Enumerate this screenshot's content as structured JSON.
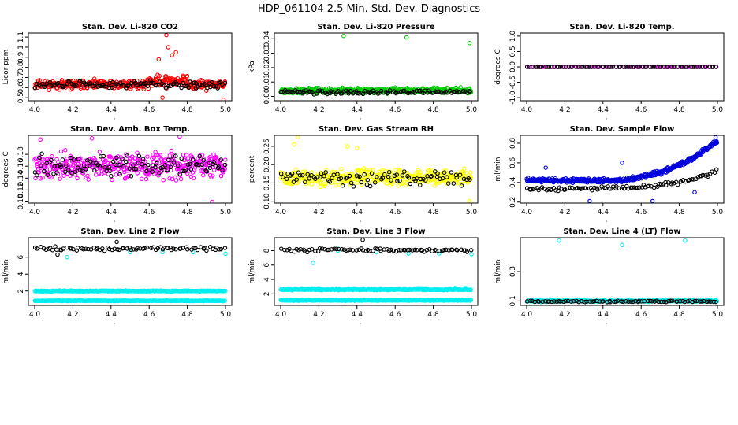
{
  "figure_title": "HDP_061104  2.5 Min. Std. Dev. Diagnostics",
  "chart_data": [
    {
      "type": "scatter",
      "title": "Stan. Dev. Li-820 CO2",
      "ylabel": "Licor ppm",
      "xlabel": "",
      "xlim": [
        4.0,
        5.0
      ],
      "ylim": [
        0.47,
        1.14
      ],
      "xticks": [
        4.0,
        4.2,
        4.4,
        4.6,
        4.8,
        5.0
      ],
      "xtick_labels": [
        "4.0",
        "4.2",
        "4.4",
        "4.6",
        "4.8",
        "5.0"
      ],
      "yticks": [
        0.5,
        0.6,
        0.7,
        0.8,
        0.9,
        1.0,
        1.1
      ],
      "ytick_labels": [
        "0.5",
        "0.6",
        "0.7",
        "0.8",
        "0.9",
        "1",
        "1.1"
      ],
      "series": [
        {
          "name": "dense",
          "color": "#ff0000",
          "gen": {
            "kind": "noise",
            "n": 400,
            "base": 0.63,
            "amp": 0.06,
            "seed": 11,
            "ramp": {
              "from": 4.6,
              "to": 4.8,
              "add": 0.08
            }
          },
          "extra": [
            [
              4.69,
              1.12
            ],
            [
              4.7,
              1.0
            ],
            [
              4.72,
              0.92
            ],
            [
              4.65,
              0.88
            ],
            [
              4.74,
              0.95
            ],
            [
              4.67,
              0.5
            ],
            [
              4.99,
              0.48
            ],
            [
              4.9,
              0.57
            ]
          ]
        },
        {
          "name": "sparse",
          "color": "#000000",
          "gen": {
            "kind": "noise",
            "n": 110,
            "base": 0.63,
            "amp": 0.05,
            "seed": 12
          }
        }
      ]
    },
    {
      "type": "scatter",
      "title": "Stan. Dev. Li-820 Pressure",
      "ylabel": "kPa",
      "xlabel": "",
      "xlim": [
        4.0,
        5.0
      ],
      "ylim": [
        -0.003,
        0.044
      ],
      "xticks": [
        4.0,
        4.2,
        4.4,
        4.6,
        4.8,
        5.0
      ],
      "xtick_labels": [
        "4.0",
        "4.2",
        "4.4",
        "4.6",
        "4.8",
        "5.0"
      ],
      "yticks": [
        0.0,
        0.01,
        0.02,
        0.03,
        0.04
      ],
      "ytick_labels": [
        "0.00",
        "0.01",
        "0.02",
        "0.03",
        "0.04"
      ],
      "series": [
        {
          "name": "dense",
          "color": "#00cc00",
          "gen": {
            "kind": "noise",
            "n": 450,
            "base": 0.004,
            "amp": 0.0025,
            "seed": 21
          },
          "extra": [
            [
              4.33,
              0.042
            ],
            [
              4.66,
              0.041
            ],
            [
              4.99,
              0.037
            ]
          ]
        },
        {
          "name": "sparse",
          "color": "#000000",
          "gen": {
            "kind": "noise",
            "n": 110,
            "base": 0.003,
            "amp": 0.002,
            "seed": 22
          }
        }
      ]
    },
    {
      "type": "scatter",
      "title": "Stan. Dev. Li-820 Temp.",
      "ylabel": "degrees C",
      "xlabel": "",
      "xlim": [
        4.0,
        5.0
      ],
      "ylim": [
        -1.1,
        1.1
      ],
      "xticks": [
        4.0,
        4.2,
        4.4,
        4.6,
        4.8,
        5.0
      ],
      "xtick_labels": [
        "4.0",
        "4.2",
        "4.4",
        "4.6",
        "4.8",
        "5.0"
      ],
      "yticks": [
        -1.0,
        -0.5,
        0.0,
        0.5,
        1.0
      ],
      "ytick_labels": [
        "-1.0",
        "-0.5",
        "0.0",
        "0.5",
        "1.0"
      ],
      "series": [
        {
          "name": "dense",
          "color": "#ff00ff",
          "gen": {
            "kind": "flat",
            "n": 80,
            "base": 0.0,
            "seed": 31
          }
        },
        {
          "name": "sparse",
          "color": "#000000",
          "gen": {
            "kind": "flat",
            "n": 80,
            "base": 0.0,
            "seed": 32
          }
        }
      ]
    },
    {
      "type": "scatter",
      "title": "Stan. Dev. Amb. Box Temp.",
      "ylabel": "degrees C",
      "xlabel": "",
      "xlim": [
        4.0,
        5.0
      ],
      "ylim": [
        0.098,
        0.212
      ],
      "xticks": [
        4.0,
        4.2,
        4.4,
        4.6,
        4.8,
        5.0
      ],
      "xtick_labels": [
        "4.0",
        "4.2",
        "4.4",
        "4.6",
        "4.8",
        "5.0"
      ],
      "yticks": [
        0.1,
        0.12,
        0.14,
        0.16,
        0.18
      ],
      "ytick_labels": [
        "0.10",
        "0.12",
        "0.14",
        "0.16",
        "0.18"
      ],
      "series": [
        {
          "name": "dense",
          "color": "#ff00ff",
          "gen": {
            "kind": "noise",
            "n": 400,
            "base": 0.16,
            "amp": 0.03,
            "seed": 41
          },
          "extra": [
            [
              4.03,
              0.205
            ],
            [
              4.76,
              0.21
            ],
            [
              4.93,
              0.1
            ],
            [
              4.3,
              0.207
            ]
          ]
        },
        {
          "name": "sparse",
          "color": "#000000",
          "gen": {
            "kind": "noise",
            "n": 110,
            "base": 0.16,
            "amp": 0.025,
            "seed": 42
          }
        }
      ]
    },
    {
      "type": "scatter",
      "title": "Stan. Dev. Gas Stream RH",
      "ylabel": "percent",
      "xlabel": "",
      "xlim": [
        4.0,
        5.0
      ],
      "ylim": [
        0.095,
        0.28
      ],
      "xticks": [
        4.0,
        4.2,
        4.4,
        4.6,
        4.8,
        5.0
      ],
      "xtick_labels": [
        "4.0",
        "4.2",
        "4.4",
        "4.6",
        "4.8",
        "5.0"
      ],
      "yticks": [
        0.1,
        0.15,
        0.2,
        0.25
      ],
      "ytick_labels": [
        "0.10",
        "0.15",
        "0.20",
        "0.25"
      ],
      "series": [
        {
          "name": "dense",
          "color": "#ffff00",
          "gen": {
            "kind": "noise",
            "n": 400,
            "base": 0.165,
            "amp": 0.03,
            "seed": 51
          },
          "extra": [
            [
              4.09,
              0.275
            ],
            [
              4.07,
              0.255
            ],
            [
              4.35,
              0.25
            ],
            [
              4.4,
              0.245
            ],
            [
              4.99,
              0.1
            ]
          ]
        },
        {
          "name": "sparse",
          "color": "#000000",
          "gen": {
            "kind": "noise",
            "n": 90,
            "base": 0.165,
            "amp": 0.03,
            "seed": 52
          }
        }
      ]
    },
    {
      "type": "scatter",
      "title": "Stan. Dev. Sample Flow",
      "ylabel": "ml/min",
      "xlabel": "",
      "xlim": [
        4.0,
        5.0
      ],
      "ylim": [
        0.19,
        0.88
      ],
      "xticks": [
        4.0,
        4.2,
        4.4,
        4.6,
        4.8,
        5.0
      ],
      "xtick_labels": [
        "4.0",
        "4.2",
        "4.4",
        "4.6",
        "4.8",
        "5.0"
      ],
      "yticks": [
        0.2,
        0.4,
        0.6,
        0.8
      ],
      "ytick_labels": [
        "0.2",
        "0.4",
        "0.6",
        "0.8"
      ],
      "series": [
        {
          "name": "dense",
          "color": "#0000dd",
          "gen": {
            "kind": "trend",
            "n": 420,
            "seed": 61,
            "pts": [
              [
                4.0,
                0.42
              ],
              [
                4.5,
                0.42
              ],
              [
                4.7,
                0.5
              ],
              [
                4.85,
                0.62
              ],
              [
                5.0,
                0.82
              ]
            ],
            "amp": 0.03
          },
          "extra": [
            [
              4.33,
              0.21
            ],
            [
              4.5,
              0.6
            ],
            [
              4.66,
              0.21
            ],
            [
              4.1,
              0.55
            ],
            [
              4.88,
              0.3
            ],
            [
              4.99,
              0.86
            ]
          ]
        },
        {
          "name": "sparse",
          "color": "#000000",
          "gen": {
            "kind": "trend",
            "n": 100,
            "seed": 62,
            "pts": [
              [
                4.0,
                0.33
              ],
              [
                4.6,
                0.35
              ],
              [
                4.85,
                0.42
              ],
              [
                5.0,
                0.52
              ]
            ],
            "amp": 0.03
          }
        }
      ]
    },
    {
      "type": "scatter",
      "title": "Stan. Dev. Line 2 Flow",
      "ylabel": "ml/min",
      "xlabel": "",
      "xlim": [
        4.0,
        5.0
      ],
      "ylim": [
        0.3,
        8.3
      ],
      "xticks": [
        4.0,
        4.2,
        4.4,
        4.6,
        4.8,
        5.0
      ],
      "xtick_labels": [
        "4.0",
        "4.2",
        "4.4",
        "4.6",
        "4.8",
        "5.0"
      ],
      "yticks": [
        2,
        4,
        6
      ],
      "ytick_labels": [
        "2",
        "4",
        "6"
      ],
      "series": [
        {
          "name": "band-high",
          "color": "#00eeee",
          "gen": {
            "kind": "flat",
            "n": 260,
            "base": 2.0,
            "amp": 0.08,
            "seed": 71
          }
        },
        {
          "name": "band-low",
          "color": "#00eeee",
          "gen": {
            "kind": "flat",
            "n": 260,
            "base": 0.85,
            "amp": 0.06,
            "seed": 72
          },
          "extra": [
            [
              4.17,
              6.0
            ],
            [
              4.5,
              6.6
            ],
            [
              4.67,
              6.6
            ],
            [
              4.83,
              6.6
            ],
            [
              5.0,
              6.4
            ]
          ]
        },
        {
          "name": "sparse",
          "color": "#000000",
          "gen": {
            "kind": "noise",
            "n": 80,
            "base": 7.0,
            "amp": 0.35,
            "seed": 73
          },
          "extra": [
            [
              4.12,
              6.3
            ],
            [
              4.43,
              7.8
            ]
          ]
        }
      ]
    },
    {
      "type": "scatter",
      "title": "Stan. Dev. Line 3 Flow",
      "ylabel": "ml/min",
      "xlabel": "",
      "xlim": [
        4.0,
        5.0
      ],
      "ylim": [
        0.4,
        9.8
      ],
      "xticks": [
        4.0,
        4.2,
        4.4,
        4.6,
        4.8,
        5.0
      ],
      "xtick_labels": [
        "4.0",
        "4.2",
        "4.4",
        "4.6",
        "4.8",
        "5.0"
      ],
      "yticks": [
        2,
        4,
        6,
        8
      ],
      "ytick_labels": [
        "2",
        "4",
        "6",
        "8"
      ],
      "series": [
        {
          "name": "band-high",
          "color": "#00eeee",
          "gen": {
            "kind": "flat",
            "n": 260,
            "base": 2.6,
            "amp": 0.12,
            "seed": 81
          }
        },
        {
          "name": "band-low",
          "color": "#00eeee",
          "gen": {
            "kind": "flat",
            "n": 260,
            "base": 1.1,
            "amp": 0.08,
            "seed": 82
          },
          "extra": [
            [
              4.17,
              6.3
            ],
            [
              4.3,
              8.0
            ],
            [
              4.5,
              7.8
            ],
            [
              4.67,
              7.6
            ],
            [
              4.83,
              7.6
            ],
            [
              5.0,
              7.5
            ]
          ]
        },
        {
          "name": "sparse",
          "color": "#000000",
          "gen": {
            "kind": "noise",
            "n": 80,
            "base": 8.1,
            "amp": 0.35,
            "seed": 83
          },
          "extra": [
            [
              4.43,
              9.5
            ]
          ]
        }
      ]
    },
    {
      "type": "scatter",
      "title": "Stan. Dev. Line 4 (LT) Flow",
      "ylabel": "ml/min",
      "xlabel": "",
      "xlim": [
        4.0,
        5.0
      ],
      "ylim": [
        0.07,
        0.53
      ],
      "xticks": [
        4.0,
        4.2,
        4.4,
        4.6,
        4.8,
        5.0
      ],
      "xtick_labels": [
        "4.0",
        "4.2",
        "4.4",
        "4.6",
        "4.8",
        "5.0"
      ],
      "yticks": [
        0.1,
        0.3
      ],
      "ytick_labels": [
        "0.1",
        "0.3"
      ],
      "series": [
        {
          "name": "dense",
          "color": "#00eeee",
          "gen": {
            "kind": "flat",
            "n": 380,
            "base": 0.1,
            "amp": 0.008,
            "seed": 91
          },
          "extra": [
            [
              4.17,
              0.51
            ],
            [
              4.5,
              0.48
            ],
            [
              4.83,
              0.51
            ]
          ]
        },
        {
          "name": "sparse",
          "color": "#000000",
          "gen": {
            "kind": "flat",
            "n": 80,
            "base": 0.097,
            "amp": 0.007,
            "seed": 92
          }
        }
      ]
    }
  ]
}
